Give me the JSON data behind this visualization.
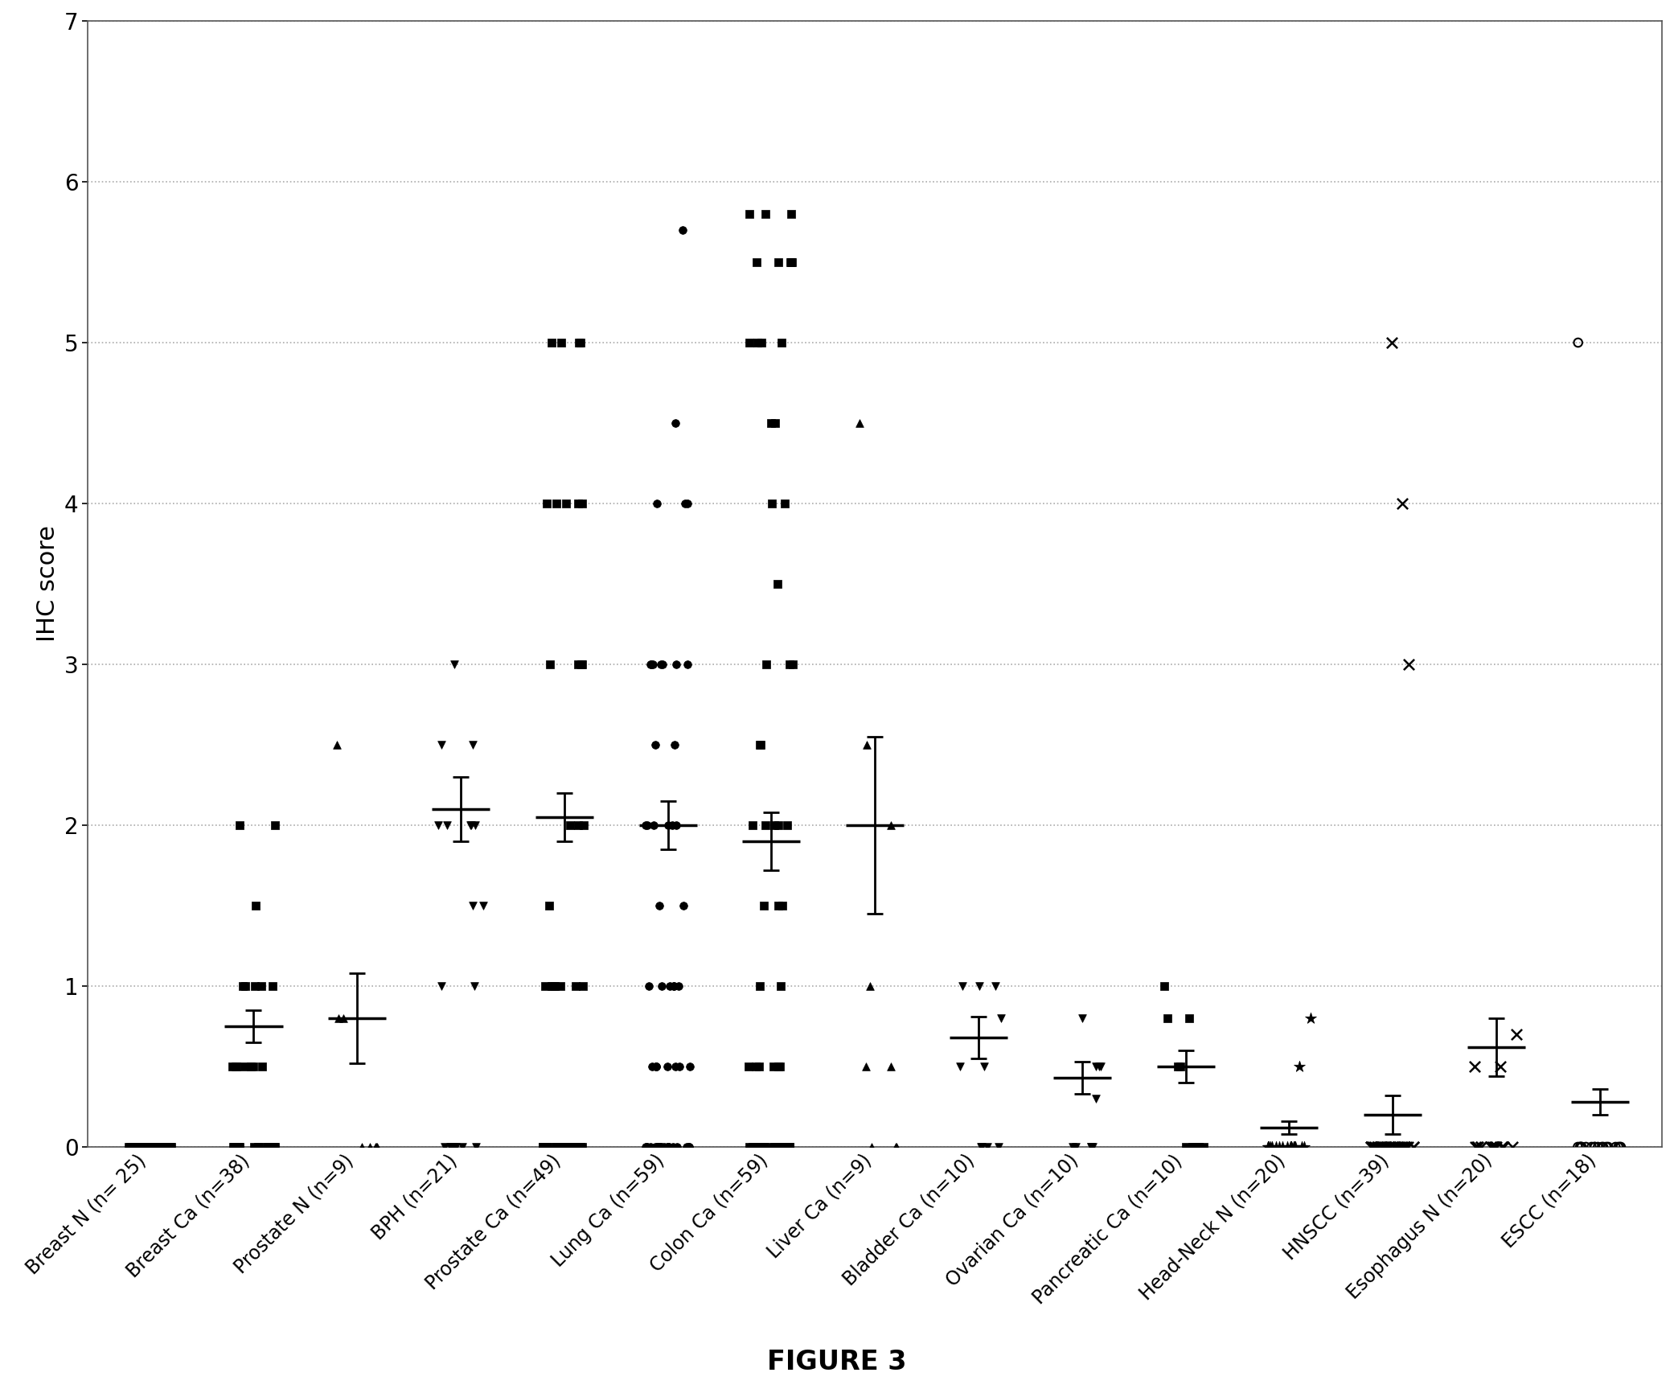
{
  "categories": [
    "Breast N (n= 25)",
    "Breast Ca (n=38)",
    "Prostate N (n=9)",
    "BPH (n=21)",
    "Prostate Ca (n=49)",
    "Lung Ca (n=59)",
    "Colon Ca (n=59)",
    "Liver Ca (n=9)",
    "Bladder Ca (n=10)",
    "Ovarian Ca (n=10)",
    "Pancreatic Ca (n=10)",
    "Head-Neck N (n=20)",
    "HNSCC (n=39)",
    "Esophagus N (n=20)",
    "ESCC (n=18)"
  ],
  "marker_styles": [
    "s",
    "s",
    "^",
    "v",
    "s",
    "o",
    "s",
    "^",
    "v",
    "v",
    "s",
    "*",
    "x",
    "x",
    "o"
  ],
  "data_points": [
    [
      0,
      0,
      0,
      0,
      0,
      0,
      0,
      0,
      0,
      0,
      0,
      0,
      0,
      0,
      0,
      0,
      0,
      0,
      0,
      0,
      0,
      0,
      0,
      0,
      0
    ],
    [
      0,
      0,
      0,
      0,
      0,
      0,
      0,
      0,
      0,
      0,
      0,
      0.5,
      0.5,
      0.5,
      0.5,
      0.5,
      0.5,
      0.5,
      1,
      1,
      1,
      1,
      1,
      1.5,
      2,
      2
    ],
    [
      0,
      0,
      0,
      0,
      0,
      0.8,
      0.8,
      2.5
    ],
    [
      0,
      0,
      0,
      0,
      0,
      0,
      0,
      0,
      1,
      1,
      1.5,
      1.5,
      2,
      2,
      2,
      2,
      2,
      2.5,
      2.5,
      3
    ],
    [
      0,
      0,
      0,
      0,
      0,
      0,
      0,
      0,
      0,
      0,
      0,
      0,
      0,
      0,
      0,
      0,
      0,
      0,
      0,
      0,
      0,
      0,
      0,
      0,
      0,
      1,
      1,
      1,
      1,
      1,
      1,
      1,
      1.5,
      2,
      2,
      2,
      3,
      3,
      3,
      3,
      4,
      4,
      4,
      4,
      4,
      5,
      5,
      5,
      5
    ],
    [
      0,
      0,
      0,
      0,
      0,
      0,
      0,
      0,
      0,
      0,
      0,
      0,
      0,
      0,
      0,
      0,
      0,
      0,
      0,
      0,
      0,
      0,
      0,
      0.5,
      0.5,
      0.5,
      0.5,
      0.5,
      0.5,
      0.5,
      0.5,
      1,
      1,
      1,
      1,
      1,
      1,
      1.5,
      1.5,
      2,
      2,
      2,
      2,
      2,
      2,
      2.5,
      2.5,
      3,
      3,
      3,
      3,
      3,
      3,
      3,
      4,
      4,
      4,
      4.5,
      5.7
    ],
    [
      0,
      0,
      0,
      0,
      0,
      0,
      0,
      0,
      0,
      0,
      0,
      0,
      0,
      0,
      0,
      0,
      0,
      0,
      0,
      0,
      0,
      0.5,
      0.5,
      0.5,
      0.5,
      0.5,
      0.5,
      1,
      1,
      1.5,
      1.5,
      1.5,
      2,
      2,
      2,
      2,
      2,
      2.5,
      2.5,
      3,
      3,
      3,
      3.5,
      4,
      4,
      4.5,
      4.5,
      5,
      5,
      5,
      5,
      5.5,
      5.5,
      5.5,
      5.5,
      5.5,
      5.8,
      5.8,
      5.8
    ],
    [
      0,
      0,
      0,
      0.5,
      0.5,
      1,
      2,
      2.5,
      4.5
    ],
    [
      0,
      0,
      0,
      0,
      0.5,
      0.5,
      0.8,
      1,
      1,
      1
    ],
    [
      0,
      0,
      0,
      0,
      0,
      0.3,
      0.5,
      0.5,
      0.5,
      0.8
    ],
    [
      0,
      0,
      0,
      0,
      0,
      0,
      0.5,
      0.5,
      0.8,
      0.8,
      1
    ],
    [
      0,
      0,
      0,
      0,
      0,
      0,
      0,
      0,
      0,
      0,
      0,
      0,
      0,
      0,
      0,
      0,
      0,
      0,
      0.5,
      0.8
    ],
    [
      0,
      0,
      0,
      0,
      0,
      0,
      0,
      0,
      0,
      0,
      0,
      0,
      0,
      0,
      0,
      0,
      0,
      0,
      0,
      0,
      0,
      0,
      0,
      0,
      0,
      0,
      0,
      0,
      0,
      0,
      3,
      4,
      5
    ],
    [
      0,
      0,
      0,
      0,
      0,
      0,
      0,
      0,
      0,
      0,
      0,
      0,
      0,
      0,
      0,
      0,
      0,
      0.5,
      0.5,
      0.7
    ],
    [
      0,
      0,
      0,
      0,
      0,
      0,
      0,
      0,
      0,
      0,
      0,
      0,
      0,
      0,
      0,
      0,
      0,
      0,
      5
    ]
  ],
  "means": [
    0.0,
    0.75,
    0.8,
    2.1,
    2.05,
    2.0,
    1.9,
    2.0,
    0.68,
    0.43,
    0.5,
    0.12,
    0.2,
    0.62,
    0.28
  ],
  "sems": [
    0.0,
    0.1,
    0.28,
    0.2,
    0.15,
    0.15,
    0.18,
    0.55,
    0.13,
    0.1,
    0.1,
    0.04,
    0.12,
    0.18,
    0.08
  ],
  "ylabel": "IHC score",
  "title": "FIGURE 3",
  "ylim": [
    0,
    7
  ],
  "yticks": [
    0,
    1,
    2,
    3,
    4,
    5,
    6,
    7
  ],
  "background_color": "#ffffff",
  "grid_color": "#aaaaaa",
  "marker_color": "#000000",
  "marker_size": 7
}
